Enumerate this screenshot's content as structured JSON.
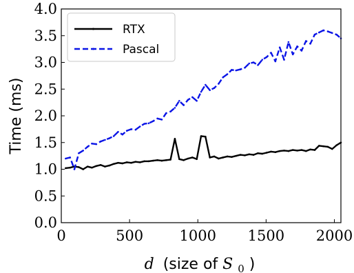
{
  "chart_data": {
    "type": "line",
    "xlabel_prefix": "d",
    "xlabel_text": "(size of ",
    "xlabel_sym": "S",
    "xlabel_sub": "0",
    "xlabel_close": ")",
    "ylabel": "Time (ms)",
    "xlim": [
      0,
      2048
    ],
    "ylim": [
      0.0,
      4.0
    ],
    "x_ticks": [
      0,
      500,
      1000,
      1500,
      2000
    ],
    "x_tick_labels": [
      "0",
      "500",
      "1000",
      "1500",
      "2000"
    ],
    "y_ticks": [
      0.0,
      0.5,
      1.0,
      1.5,
      2.0,
      2.5,
      3.0,
      3.5,
      4.0
    ],
    "y_tick_labels": [
      "0.0",
      "0.5",
      "1.0",
      "1.5",
      "2.0",
      "2.5",
      "3.0",
      "3.5",
      "4.0"
    ],
    "grid": false,
    "legend_position": "top-left",
    "series": [
      {
        "name": "RTX",
        "color": "#000000",
        "style": "solid",
        "x": [
          32,
          64,
          96,
          128,
          160,
          192,
          224,
          256,
          288,
          320,
          352,
          384,
          416,
          448,
          480,
          512,
          544,
          576,
          608,
          640,
          672,
          704,
          736,
          768,
          800,
          832,
          864,
          896,
          928,
          960,
          992,
          1024,
          1056,
          1088,
          1120,
          1152,
          1184,
          1216,
          1248,
          1280,
          1312,
          1344,
          1376,
          1408,
          1440,
          1472,
          1504,
          1536,
          1568,
          1600,
          1632,
          1664,
          1696,
          1728,
          1760,
          1792,
          1824,
          1856,
          1888,
          1920,
          1952,
          1984,
          2016,
          2048
        ],
        "y": [
          1.02,
          1.03,
          1.05,
          1.04,
          1.0,
          1.05,
          1.03,
          1.06,
          1.08,
          1.05,
          1.07,
          1.1,
          1.12,
          1.11,
          1.13,
          1.12,
          1.14,
          1.13,
          1.15,
          1.15,
          1.16,
          1.17,
          1.16,
          1.17,
          1.18,
          1.57,
          1.19,
          1.17,
          1.2,
          1.22,
          1.19,
          1.62,
          1.61,
          1.22,
          1.24,
          1.2,
          1.22,
          1.24,
          1.23,
          1.25,
          1.27,
          1.26,
          1.28,
          1.27,
          1.3,
          1.29,
          1.31,
          1.33,
          1.32,
          1.34,
          1.35,
          1.34,
          1.36,
          1.35,
          1.36,
          1.34,
          1.37,
          1.36,
          1.44,
          1.43,
          1.42,
          1.38,
          1.45,
          1.5
        ]
      },
      {
        "name": "Pascal",
        "color": "#0a14e6",
        "style": "dashed",
        "x": [
          32,
          64,
          96,
          128,
          160,
          192,
          224,
          256,
          288,
          320,
          352,
          384,
          416,
          448,
          480,
          512,
          544,
          576,
          608,
          640,
          672,
          704,
          736,
          768,
          800,
          832,
          864,
          896,
          928,
          960,
          992,
          1024,
          1056,
          1088,
          1120,
          1152,
          1184,
          1216,
          1248,
          1280,
          1312,
          1344,
          1376,
          1408,
          1440,
          1472,
          1504,
          1536,
          1568,
          1600,
          1632,
          1664,
          1696,
          1728,
          1760,
          1792,
          1824,
          1856,
          1888,
          1920,
          1952,
          1984,
          2016,
          2048
        ],
        "y": [
          1.2,
          1.22,
          1.0,
          1.3,
          1.35,
          1.42,
          1.48,
          1.47,
          1.52,
          1.55,
          1.58,
          1.62,
          1.7,
          1.65,
          1.72,
          1.75,
          1.74,
          1.8,
          1.85,
          1.86,
          1.9,
          1.95,
          1.93,
          2.05,
          2.08,
          2.15,
          2.28,
          2.2,
          2.3,
          2.35,
          2.28,
          2.45,
          2.58,
          2.48,
          2.52,
          2.6,
          2.72,
          2.78,
          2.86,
          2.85,
          2.87,
          2.9,
          2.98,
          3.0,
          2.95,
          3.05,
          3.1,
          3.18,
          3.02,
          3.28,
          3.05,
          3.38,
          3.15,
          3.3,
          3.22,
          3.4,
          3.35,
          3.52,
          3.56,
          3.6,
          3.58,
          3.55,
          3.52,
          3.45
        ]
      }
    ]
  }
}
